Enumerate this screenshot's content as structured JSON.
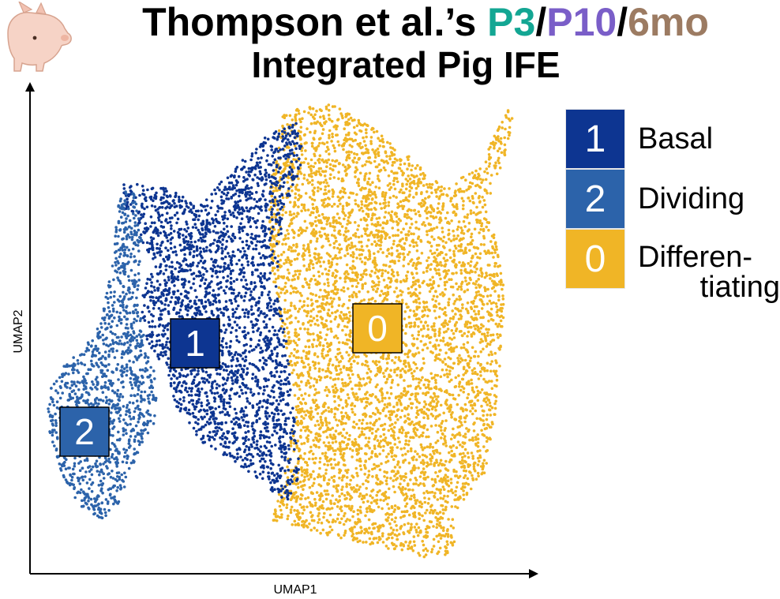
{
  "title": {
    "prefix": "Thompson et al.’s ",
    "p3": "P3",
    "sep1": "/",
    "p10": "P10",
    "sep2": "/",
    "mo6": "6mo",
    "line2": "Integrated Pig IFE",
    "colors": {
      "p3": "#13a693",
      "p10": "#7a5ec8",
      "mo6": "#9c7b62"
    }
  },
  "logo_icon": "pig-icon",
  "chart_data": {
    "type": "scatter",
    "xlabel": "UMAP1",
    "ylabel": "UMAP2",
    "grid": false,
    "legend_placement": "right",
    "series": [
      {
        "cluster": "1",
        "name": "Basal",
        "color": "#0d3591"
      },
      {
        "cluster": "2",
        "name": "Dividing",
        "color": "#2c63aa"
      },
      {
        "cluster": "0",
        "name": "Differen- tiating",
        "color": "#f0b526"
      }
    ]
  },
  "legend": [
    {
      "label": "1",
      "text": "Basal",
      "color": "#0d3591"
    },
    {
      "label": "2",
      "text": "Dividing",
      "color": "#2c63aa"
    },
    {
      "label": "0",
      "text_line1": "Differen-",
      "text_line2": "tiating",
      "color": "#f0b526"
    }
  ]
}
